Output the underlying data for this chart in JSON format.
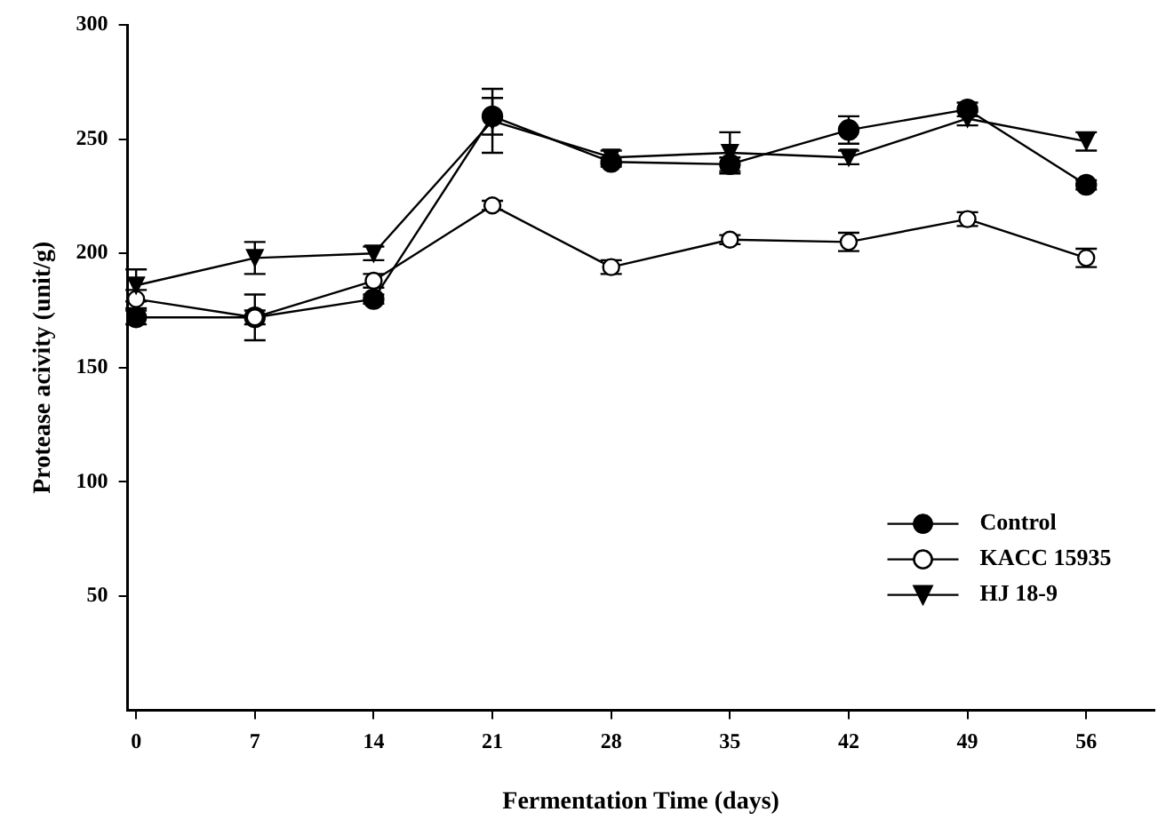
{
  "chart_data": {
    "type": "line",
    "xlabel": "Fermentation Time (days)",
    "ylabel": "Protease acivity (unit/g)",
    "x": [
      0,
      7,
      14,
      21,
      28,
      35,
      42,
      49,
      56
    ],
    "xlim": [
      -0.5,
      60
    ],
    "xticks": [
      0,
      7,
      14,
      21,
      28,
      35,
      42,
      49,
      56
    ],
    "ylim": [
      0,
      300
    ],
    "yticks": [
      50,
      100,
      150,
      200,
      250,
      300
    ],
    "grid": false,
    "legend": "bottom right",
    "line_style": "solid",
    "series": [
      {
        "name": "Control",
        "color": "#000000",
        "marker": "circle",
        "values": [
          172,
          172,
          180,
          260,
          240,
          239,
          254,
          263,
          230
        ],
        "errors": [
          3,
          3,
          2,
          8,
          2,
          3,
          6,
          3,
          2
        ]
      },
      {
        "name": "KACC 15935",
        "color": "#000000",
        "marker": "circle",
        "values": [
          180,
          172,
          188,
          221,
          194,
          206,
          205,
          215,
          198
        ],
        "errors": [
          4,
          10,
          3,
          2,
          3,
          2,
          4,
          3,
          4
        ]
      },
      {
        "name": "HJ 18-9",
        "color": "#000000",
        "marker": "triangle",
        "values": [
          186,
          198,
          200,
          258,
          242,
          244,
          242,
          259,
          249
        ],
        "errors": [
          7,
          7,
          3,
          14,
          3,
          9,
          3,
          3,
          4
        ]
      }
    ]
  }
}
